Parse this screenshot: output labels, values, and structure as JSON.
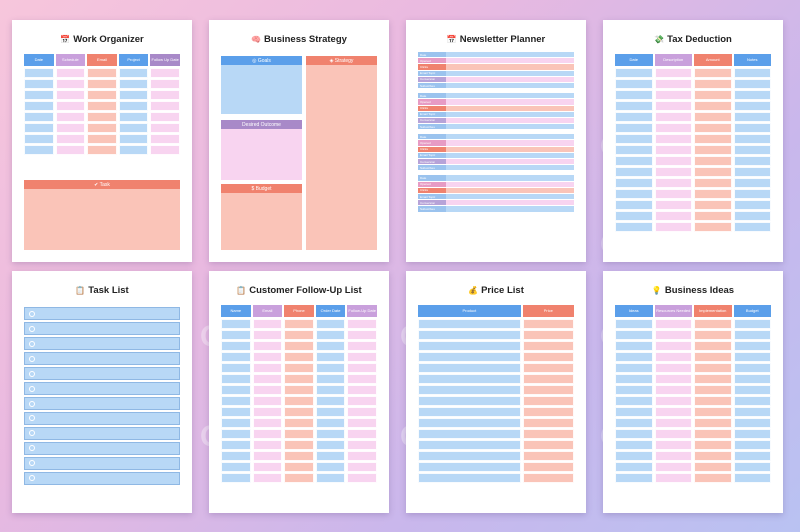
{
  "watermark": "CraftNest",
  "colors": {
    "blue": "#b8d8f6",
    "pink": "#f8d4f0",
    "salmon": "#fac4b8",
    "blue_header": "#5b9fea",
    "salmon_header": "#f0826e"
  },
  "pages": {
    "work": {
      "icon": "calendar-icon",
      "title": "Work Organizer",
      "headers": [
        "Date",
        "Schedule",
        "Email",
        "Project",
        "Follow Up Date"
      ],
      "task_label": "Task"
    },
    "strategy": {
      "icon": "brain-icon",
      "title": "Business Strategy",
      "goals": "Goals",
      "strategy": "Strategy",
      "outcome": "Desired Outcome",
      "budget": "Budget"
    },
    "newsletter": {
      "icon": "calendar-icon",
      "title": "Newsletter Planner",
      "labels": [
        "Date",
        "Opened",
        "Clicks",
        "Email Topic",
        "Conversion",
        "Subscribes"
      ]
    },
    "tax": {
      "icon": "money-icon",
      "title": "Tax Deduction",
      "headers": [
        "Date",
        "Description",
        "Amount",
        "Notes"
      ]
    },
    "tasklist": {
      "icon": "clipboard-icon",
      "title": "Task List"
    },
    "followup": {
      "icon": "clipboard-icon",
      "title": "Customer Follow-Up List",
      "headers": [
        "Name",
        "Email",
        "Phone",
        "Order Date",
        "Follow-Up Date"
      ]
    },
    "price": {
      "icon": "money-bag-icon",
      "title": "Price List",
      "headers": [
        "Product",
        "Price"
      ]
    },
    "ideas": {
      "icon": "lightbulb-icon",
      "title": "Business Ideas",
      "headers": [
        "Ideas",
        "Resources Needed",
        "Implementation",
        "Budget"
      ]
    }
  }
}
